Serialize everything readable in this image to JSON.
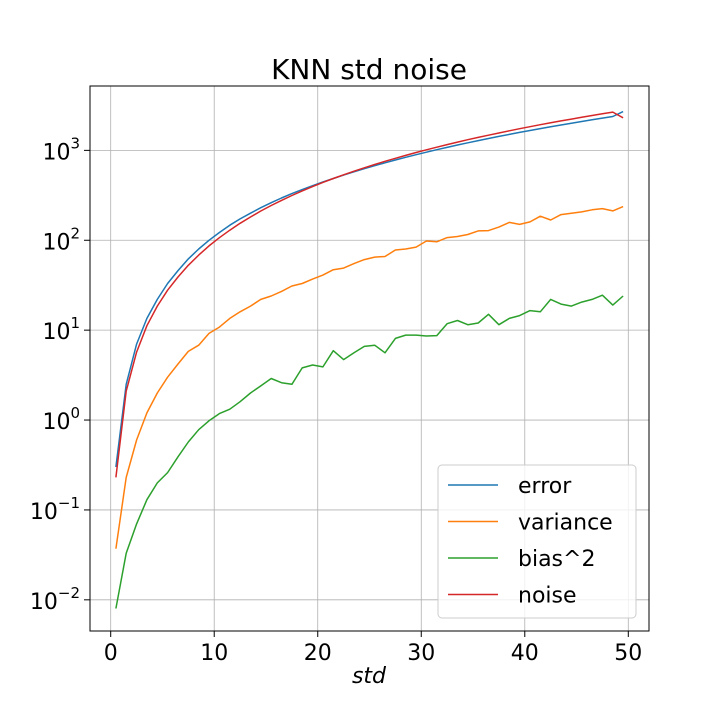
{
  "chart_data": {
    "type": "line",
    "title": "KNN std noise",
    "xlabel": "std",
    "ylabel": "",
    "xlim": [
      -2.0,
      52.0
    ],
    "ylim": [
      0.0045,
      5200
    ],
    "yscale": "log",
    "grid": true,
    "legend_position": "lower-right",
    "xticks": [
      0,
      10,
      20,
      30,
      40,
      50
    ],
    "xtick_labels": [
      "0",
      "10",
      "20",
      "30",
      "40",
      "50"
    ],
    "yticks": [
      0.01,
      0.1,
      1,
      10,
      100,
      1000
    ],
    "ytick_labels": [
      {
        "base": "10",
        "exp": "−2"
      },
      {
        "base": "10",
        "exp": "−1"
      },
      {
        "base": "10",
        "exp": "0"
      },
      {
        "base": "10",
        "exp": "1"
      },
      {
        "base": "10",
        "exp": "2"
      },
      {
        "base": "10",
        "exp": "3"
      }
    ],
    "x": [
      0.5,
      1.5,
      2.5,
      3.5,
      4.5,
      5.5,
      6.5,
      7.5,
      8.5,
      9.5,
      10.5,
      11.5,
      12.5,
      13.5,
      14.5,
      15.5,
      16.5,
      17.5,
      18.5,
      19.5,
      20.5,
      21.5,
      22.5,
      23.5,
      24.5,
      25.5,
      26.5,
      27.5,
      28.5,
      29.5,
      30.5,
      31.5,
      32.5,
      33.5,
      34.5,
      35.5,
      36.5,
      37.5,
      38.5,
      39.5,
      40.5,
      41.5,
      42.5,
      43.5,
      44.5,
      45.5,
      46.5,
      47.5,
      48.5,
      49.5
    ],
    "series": [
      {
        "name": "error",
        "color": "#1f77b4",
        "values": [
          0.3,
          2.5,
          7.0,
          13.5,
          22,
          33,
          46,
          62,
          80,
          100,
          122,
          147,
          173,
          200,
          230,
          262,
          295,
          330,
          366,
          405,
          445,
          487,
          531,
          577,
          625,
          675,
          727,
          781,
          837,
          895,
          955,
          1017,
          1080,
          1146,
          1214,
          1284,
          1356,
          1430,
          1506,
          1584,
          1664,
          1746,
          1831,
          1917,
          2006,
          2097,
          2190,
          2285,
          2383,
          2700
        ]
      },
      {
        "name": "variance",
        "color": "#ff7f0e",
        "values": [
          0.037,
          0.23,
          0.6,
          1.2,
          2.0,
          3.0,
          4.2,
          5.8,
          6.8,
          9.2,
          10.8,
          13.5,
          16.0,
          18.5,
          22.0,
          24.0,
          27.0,
          31.0,
          33.0,
          37.0,
          41.0,
          47.0,
          49.0,
          55.0,
          61.0,
          65.0,
          66.0,
          78.0,
          80.0,
          84.0,
          98.0,
          96.0,
          107.0,
          110.0,
          116.0,
          127.0,
          128.0,
          140.0,
          158.0,
          150.0,
          160.0,
          185.0,
          168.0,
          193.0,
          200.0,
          207.0,
          218.0,
          225.0,
          212.0,
          237.0
        ]
      },
      {
        "name": "bias^2",
        "color": "#2ca02c",
        "values": [
          0.008,
          0.033,
          0.07,
          0.13,
          0.2,
          0.26,
          0.39,
          0.57,
          0.78,
          0.98,
          1.18,
          1.32,
          1.6,
          2.0,
          2.4,
          2.9,
          2.6,
          2.5,
          3.8,
          4.1,
          3.9,
          5.9,
          4.7,
          5.6,
          6.6,
          6.8,
          5.6,
          8.1,
          8.8,
          8.8,
          8.6,
          8.7,
          11.8,
          12.8,
          11.5,
          12.0,
          15.0,
          11.5,
          13.5,
          14.5,
          16.5,
          16.0,
          22.0,
          19.5,
          18.5,
          20.5,
          22.0,
          24.5,
          19.0,
          24.0
        ]
      },
      {
        "name": "noise",
        "color": "#d62728",
        "values": [
          0.23,
          2.1,
          5.7,
          11.2,
          18.5,
          27.8,
          39,
          52.6,
          68.4,
          86.5,
          106.7,
          129.3,
          154.3,
          181.6,
          211.3,
          243.3,
          277.7,
          314.6,
          353.8,
          395.5,
          439.6,
          486.1,
          535,
          586.4,
          640.2,
          696.5,
          755.1,
          816.3,
          879.8,
          945.8,
          1014.3,
          1085.2,
          1158.5,
          1234.3,
          1312.5,
          1393.2,
          1476.3,
          1561.8,
          1649.8,
          1740.3,
          1833.2,
          1928.6,
          2026.4,
          2126.7,
          2229.4,
          2334.6,
          2442.2,
          2552.3,
          2664.9,
          2300
        ]
      }
    ]
  }
}
